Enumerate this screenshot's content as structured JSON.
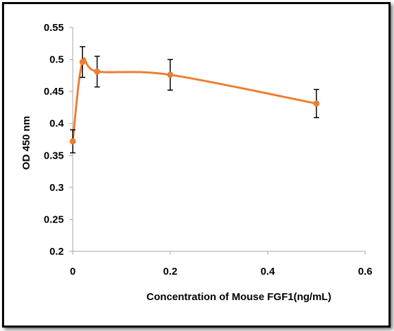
{
  "chart_data": {
    "type": "line",
    "title": "",
    "xlabel": "Concentration of Mouse FGF1(ng/mL)",
    "ylabel": "OD 450 nm",
    "xlim": [
      0,
      0.6
    ],
    "ylim": [
      0.2,
      0.55
    ],
    "x_ticks": [
      0,
      0.2,
      0.4,
      0.6
    ],
    "x_tick_labels": [
      "0",
      "0.2",
      "0.4",
      "0.6"
    ],
    "y_ticks": [
      0.2,
      0.25,
      0.3,
      0.35,
      0.4,
      0.45,
      0.5,
      0.55
    ],
    "y_tick_labels": [
      "0.2",
      "0.25",
      "0.3",
      "0.35",
      "0.4",
      "0.45",
      "0.5",
      "0.55"
    ],
    "grid": false,
    "legend": "none",
    "series": [
      {
        "color": "#ED7D31",
        "smooth": true,
        "x": [
          0,
          0.02,
          0.05,
          0.2,
          0.5
        ],
        "y": [
          0.372,
          0.496,
          0.481,
          0.476,
          0.431
        ],
        "error": [
          0.018,
          0.024,
          0.024,
          0.024,
          0.022
        ]
      }
    ]
  }
}
